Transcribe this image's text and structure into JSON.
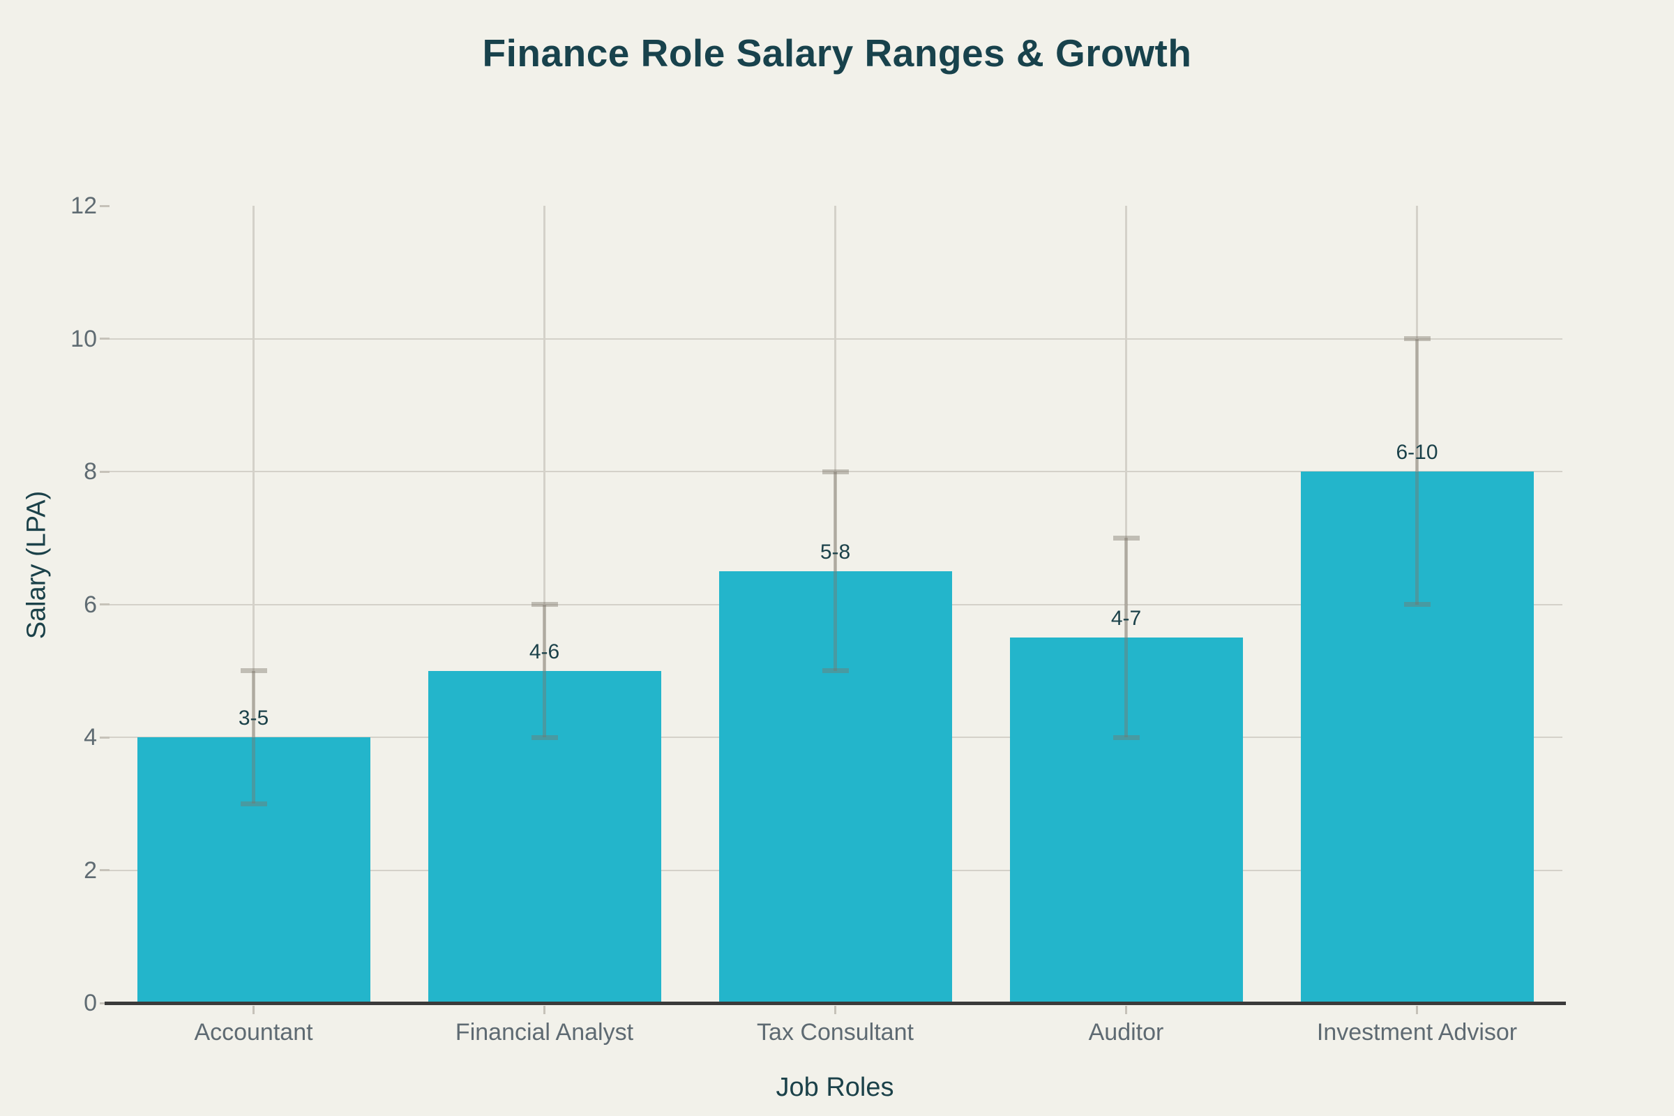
{
  "page": {
    "background": "#f2f1ea"
  },
  "chart_data": {
    "type": "bar",
    "title": "Finance Role Salary Ranges & Growth",
    "xlabel": "Job Roles",
    "ylabel": "Salary (LPA)",
    "categories": [
      "Accountant",
      "Financial Analyst",
      "Tax Consultant",
      "Auditor",
      "Investment Advisor"
    ],
    "values": [
      4,
      5,
      6.5,
      5.5,
      8
    ],
    "error_low": [
      3,
      4,
      5,
      4,
      6
    ],
    "error_high": [
      5,
      6,
      8,
      7,
      10
    ],
    "bar_labels": [
      "3-5",
      "4-6",
      "5-8",
      "4-7",
      "6-10"
    ],
    "ylim": [
      0,
      12
    ],
    "yticks": [
      0,
      2,
      4,
      6,
      8,
      10,
      12
    ],
    "gridline_ticks": [
      2,
      4,
      6,
      8,
      10
    ],
    "grid": true,
    "legend": "none",
    "colors": {
      "background": "#f2f1ea",
      "bar": "#23b5cb",
      "grid": "#d4d1c9",
      "axis_line": "#3a3a3a",
      "tick_dash": "#c6c2b9",
      "tick_text": "#5f6b72",
      "category_text": "#5e6a72",
      "title_text": "#18424c",
      "axis_title_text": "#1b4149",
      "value_label_text": "#1b4149",
      "error_bar": "rgba(124,117,104,0.42)"
    }
  }
}
